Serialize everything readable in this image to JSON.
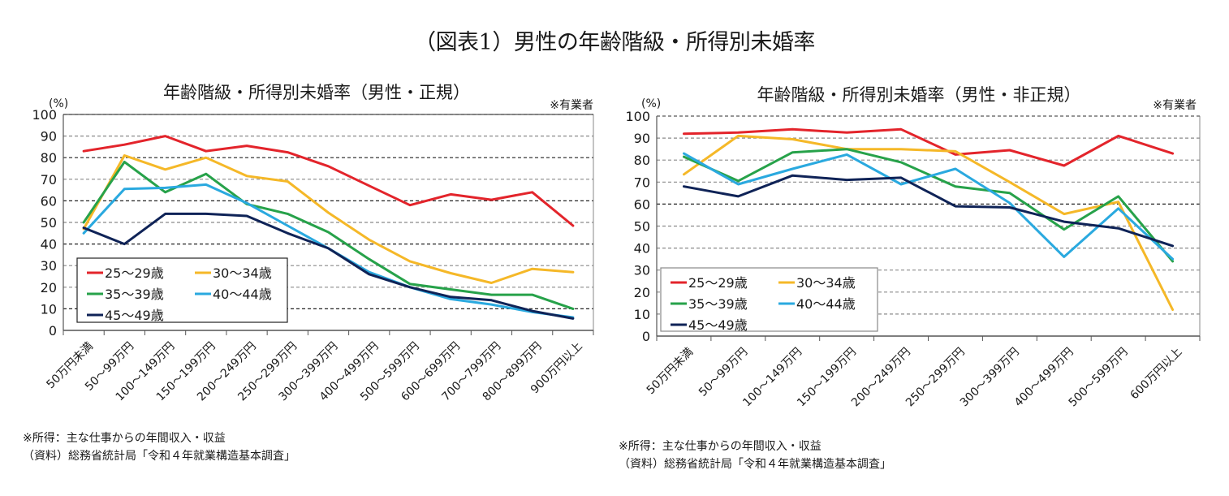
{
  "figure_title": "（図表1）男性の年齢階級・所得別未婚率",
  "chart_data": [
    {
      "type": "line",
      "title": "年齢階級・所得別未婚率（男性・正規）",
      "note": "※有業者",
      "ylabel": "(%)",
      "xlabel": "",
      "ylim": [
        0,
        100
      ],
      "yticks": [
        0,
        10,
        20,
        30,
        40,
        50,
        60,
        70,
        80,
        90,
        100
      ],
      "grid": true,
      "legend_position": "bottom-left",
      "categories": [
        "50万円未満",
        "50～99万円",
        "100～149万円",
        "150～199万円",
        "200～249万円",
        "250～299万円",
        "300～399万円",
        "400～499万円",
        "500～599万円",
        "600～699万円",
        "700～799万円",
        "800～899万円",
        "900万円以上"
      ],
      "series": [
        {
          "name": "25～29歳",
          "color": "#e3242b",
          "values": [
            83,
            86,
            90,
            83,
            85.5,
            82.5,
            76,
            67,
            58,
            63,
            60.5,
            64,
            48.5
          ]
        },
        {
          "name": "30～34歳",
          "color": "#f5b828",
          "values": [
            47,
            81,
            74.5,
            80,
            71.5,
            69,
            54.5,
            42,
            32,
            26.5,
            22,
            28.5,
            27
          ]
        },
        {
          "name": "35～39歳",
          "color": "#27a24a",
          "values": [
            50,
            78,
            64,
            72.5,
            58.5,
            54,
            45.5,
            33,
            21.5,
            19,
            16.5,
            16.5,
            10
          ]
        },
        {
          "name": "40～44歳",
          "color": "#2aa9df",
          "values": [
            45,
            65.5,
            66,
            67.5,
            59,
            48.5,
            38,
            27,
            20,
            14.5,
            12,
            8.5,
            6
          ]
        },
        {
          "name": "45～49歳",
          "color": "#0f2357",
          "values": [
            47.5,
            40,
            54,
            54,
            53,
            45,
            38,
            26,
            20,
            15.5,
            14,
            9,
            5.5
          ]
        }
      ],
      "footnotes": [
        "※所得：主な仕事からの年間収入・収益",
        "（資料）総務省統計局「令和４年就業構造基本調査」"
      ]
    },
    {
      "type": "line",
      "title": "年齢階級・所得別未婚率（男性・非正規）",
      "note": "※有業者",
      "ylabel": "(%)",
      "xlabel": "",
      "ylim": [
        0,
        100
      ],
      "yticks": [
        0,
        10,
        20,
        30,
        40,
        50,
        60,
        70,
        80,
        90,
        100
      ],
      "grid": true,
      "legend_position": "bottom-left",
      "categories": [
        "50万円未満",
        "50～99万円",
        "100～149万円",
        "150～199万円",
        "200～249万円",
        "250～299万円",
        "300～399万円",
        "400～499万円",
        "500～599万円",
        "600万円以上"
      ],
      "series": [
        {
          "name": "25～29歳",
          "color": "#e3242b",
          "values": [
            92,
            92.5,
            94,
            92.5,
            94,
            82.5,
            84.5,
            77.5,
            91,
            83
          ]
        },
        {
          "name": "30～34歳",
          "color": "#f5b828",
          "values": [
            73.5,
            91,
            89.5,
            85,
            85,
            84,
            70,
            55.5,
            61,
            12
          ]
        },
        {
          "name": "35～39歳",
          "color": "#27a24a",
          "values": [
            81.5,
            70.5,
            83.5,
            85,
            79,
            68,
            65,
            48.5,
            63.5,
            34
          ]
        },
        {
          "name": "40～44歳",
          "color": "#2aa9df",
          "values": [
            83,
            69,
            76,
            82.5,
            69,
            76,
            60.5,
            36,
            58,
            35
          ]
        },
        {
          "name": "45～49歳",
          "color": "#0f2357",
          "values": [
            68,
            63.5,
            73,
            71,
            72,
            59,
            58.5,
            52,
            49,
            41
          ]
        }
      ],
      "footnotes": [
        "※所得：主な仕事からの年間収入・収益",
        "（資料）総務省統計局「令和４年就業構造基本調査」"
      ]
    }
  ]
}
